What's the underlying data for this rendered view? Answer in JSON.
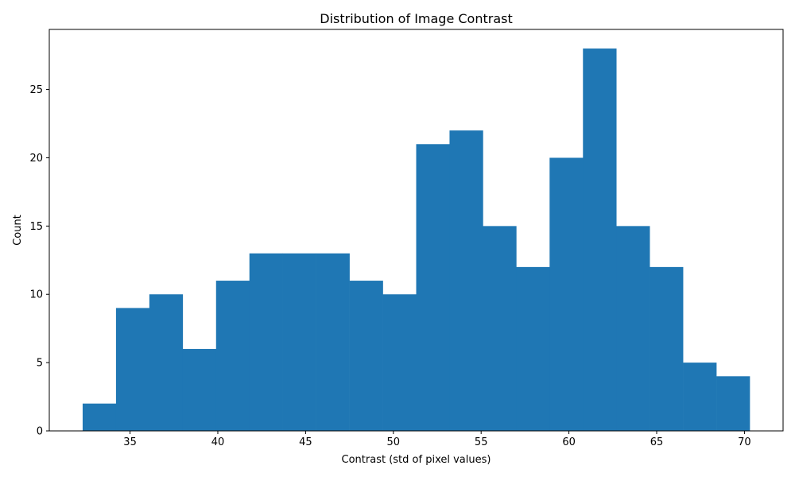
{
  "chart_data": {
    "type": "bar",
    "title": "Distribution of Image Contrast",
    "xlabel": "Contrast (std of pixel values)",
    "ylabel": "Count",
    "bin_edges": [
      32.3,
      34.2,
      36.1,
      38.0,
      39.9,
      41.8,
      43.7,
      45.6,
      47.5,
      49.4,
      51.3,
      53.2,
      55.1,
      57.0,
      58.9,
      60.8,
      62.7,
      64.6,
      66.5,
      68.4,
      70.3
    ],
    "values": [
      2,
      9,
      10,
      6,
      11,
      13,
      13,
      13,
      11,
      10,
      21,
      22,
      15,
      12,
      20,
      28,
      15,
      12,
      5,
      4
    ],
    "xlim": [
      30.4,
      72.2
    ],
    "ylim": [
      0,
      29.4
    ],
    "xticks": [
      35,
      40,
      45,
      50,
      55,
      60,
      65,
      70
    ],
    "yticks": [
      0,
      5,
      10,
      15,
      20,
      25
    ],
    "bar_color": "#1f77b4",
    "grid": false
  }
}
